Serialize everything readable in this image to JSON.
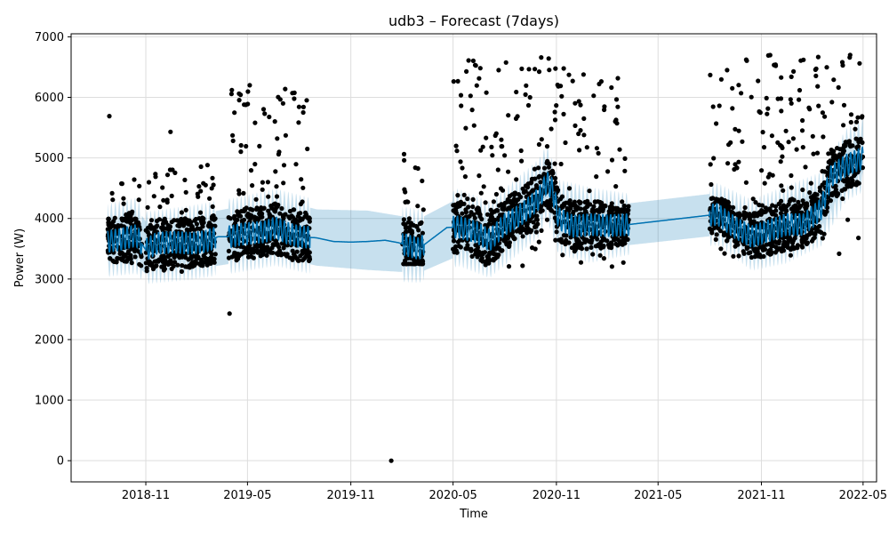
{
  "chart_data": {
    "type": "line",
    "title": "udb3 – Forecast (7days)",
    "xlabel": "Time",
    "ylabel": "Power (W)",
    "x_ticks": [
      "2018-11",
      "2019-05",
      "2019-11",
      "2020-05",
      "2020-11",
      "2021-05",
      "2021-11",
      "2022-05"
    ],
    "y_ticks": [
      0,
      1000,
      2000,
      3000,
      4000,
      5000,
      6000,
      7000
    ],
    "xlim": [
      "2018-06-21",
      "2022-05-25"
    ],
    "ylim": [
      -350,
      7050
    ],
    "grid": true,
    "legend": "none",
    "colors": {
      "observed": "#000000",
      "forecast_line": "#0072b2",
      "uncertainty_band": "#0072b2"
    },
    "series": [
      {
        "role": "forecast",
        "points": [
          [
            "2018-08-25",
            3620
          ],
          [
            "2018-09-15",
            3650
          ],
          [
            "2018-10-15",
            3720
          ],
          [
            "2018-11-01",
            3480
          ],
          [
            "2018-11-20",
            3590
          ],
          [
            "2018-12-20",
            3610
          ],
          [
            "2019-01-20",
            3590
          ],
          [
            "2019-02-15",
            3620
          ],
          [
            "2019-03-10",
            3700
          ],
          [
            "2019-04-01",
            3700
          ],
          [
            "2019-04-20",
            3740
          ],
          [
            "2019-05-10",
            3760
          ],
          [
            "2019-06-01",
            3780
          ],
          [
            "2019-06-20",
            3850
          ],
          [
            "2019-07-10",
            3760
          ],
          [
            "2019-08-01",
            3700
          ],
          [
            "2019-09-01",
            3680
          ],
          [
            "2019-10-01",
            3620
          ],
          [
            "2019-11-01",
            3610
          ],
          [
            "2019-12-01",
            3620
          ],
          [
            "2020-01-01",
            3640
          ],
          [
            "2020-01-25",
            3600
          ],
          [
            "2020-02-15",
            3540
          ],
          [
            "2020-03-01",
            3500
          ],
          [
            "2020-04-20",
            3850
          ],
          [
            "2020-05-10",
            3860
          ],
          [
            "2020-06-10",
            3780
          ],
          [
            "2020-07-05",
            3640
          ],
          [
            "2020-08-01",
            3900
          ],
          [
            "2020-09-01",
            4080
          ],
          [
            "2020-10-01",
            4330
          ],
          [
            "2020-10-15",
            4600
          ],
          [
            "2020-10-25",
            4480
          ],
          [
            "2020-11-05",
            4000
          ],
          [
            "2020-12-01",
            3870
          ],
          [
            "2021-01-01",
            3900
          ],
          [
            "2021-02-01",
            3880
          ],
          [
            "2021-03-10",
            3900
          ],
          [
            "2021-08-15",
            4070
          ],
          [
            "2021-09-15",
            3850
          ],
          [
            "2021-10-15",
            3700
          ],
          [
            "2021-11-15",
            3800
          ],
          [
            "2021-12-15",
            3900
          ],
          [
            "2022-01-15",
            3900
          ],
          [
            "2022-02-15",
            4150
          ],
          [
            "2022-03-05",
            4700
          ],
          [
            "2022-04-01",
            4880
          ],
          [
            "2022-05-01",
            5000
          ]
        ],
        "band": {
          "lower": [
            [
              "2018-08-25",
              3200
            ],
            [
              "2018-10-15",
              3250
            ],
            [
              "2018-11-01",
              3080
            ],
            [
              "2019-01-20",
              3150
            ],
            [
              "2019-04-20",
              3280
            ],
            [
              "2019-06-20",
              3380
            ],
            [
              "2019-09-01",
              3220
            ],
            [
              "2019-12-01",
              3150
            ],
            [
              "2020-03-01",
              3100
            ],
            [
              "2020-05-10",
              3380
            ],
            [
              "2020-07-05",
              3180
            ],
            [
              "2020-10-01",
              3850
            ],
            [
              "2020-10-15",
              4150
            ],
            [
              "2020-11-05",
              3560
            ],
            [
              "2021-01-01",
              3430
            ],
            [
              "2021-03-10",
              3560
            ],
            [
              "2021-08-15",
              3720
            ],
            [
              "2021-10-15",
              3300
            ],
            [
              "2021-12-15",
              3420
            ],
            [
              "2022-02-15",
              3700
            ],
            [
              "2022-04-01",
              4450
            ],
            [
              "2022-05-01",
              4600
            ]
          ],
          "upper": [
            [
              "2018-08-25",
              4080
            ],
            [
              "2018-10-15",
              4180
            ],
            [
              "2018-11-01",
              3950
            ],
            [
              "2019-01-20",
              4050
            ],
            [
              "2019-04-20",
              4200
            ],
            [
              "2019-06-20",
              4330
            ],
            [
              "2019-09-01",
              4150
            ],
            [
              "2019-12-01",
              4130
            ],
            [
              "2020-03-01",
              3990
            ],
            [
              "2020-05-10",
              4330
            ],
            [
              "2020-07-05",
              4120
            ],
            [
              "2020-10-01",
              4820
            ],
            [
              "2020-10-15",
              5070
            ],
            [
              "2020-11-05",
              4480
            ],
            [
              "2021-01-01",
              4350
            ],
            [
              "2021-03-10",
              4250
            ],
            [
              "2021-08-15",
              4420
            ],
            [
              "2021-10-15",
              4150
            ],
            [
              "2021-12-15",
              4380
            ],
            [
              "2022-02-15",
              4600
            ],
            [
              "2022-04-01",
              5320
            ],
            [
              "2022-05-01",
              5500
            ]
          ]
        }
      },
      {
        "role": "observed",
        "segments": [
          {
            "from": "2018-08-25",
            "to": "2018-10-25",
            "low": 3200,
            "high": 4650
          },
          {
            "from": "2018-11-01",
            "to": "2019-03-05",
            "low": 3100,
            "high": 4900
          },
          {
            "from": "2019-03-28",
            "to": "2019-08-20",
            "low": 3300,
            "high": 6200
          },
          {
            "from": "2020-02-01",
            "to": "2020-03-10",
            "low": 3250,
            "high": 5100
          },
          {
            "from": "2020-05-01",
            "to": "2021-03-10",
            "low": 3200,
            "high": 6650
          },
          {
            "from": "2021-08-01",
            "to": "2022-05-01",
            "low": 3350,
            "high": 6700
          }
        ],
        "outliers": [
          [
            "2018-08-28",
            5690
          ],
          [
            "2019-03-30",
            2430
          ],
          [
            "2020-01-12",
            0
          ],
          [
            "2019-05-05",
            6200
          ],
          [
            "2020-10-05",
            6660
          ],
          [
            "2021-09-01",
            6450
          ],
          [
            "2022-04-08",
            6700
          ],
          [
            "2022-03-25",
            6580
          ],
          [
            "2018-12-15",
            5430
          ],
          [
            "2020-12-20",
            5650
          ],
          [
            "2019-04-25",
            5880
          ],
          [
            "2020-09-15",
            6000
          ]
        ]
      }
    ]
  }
}
